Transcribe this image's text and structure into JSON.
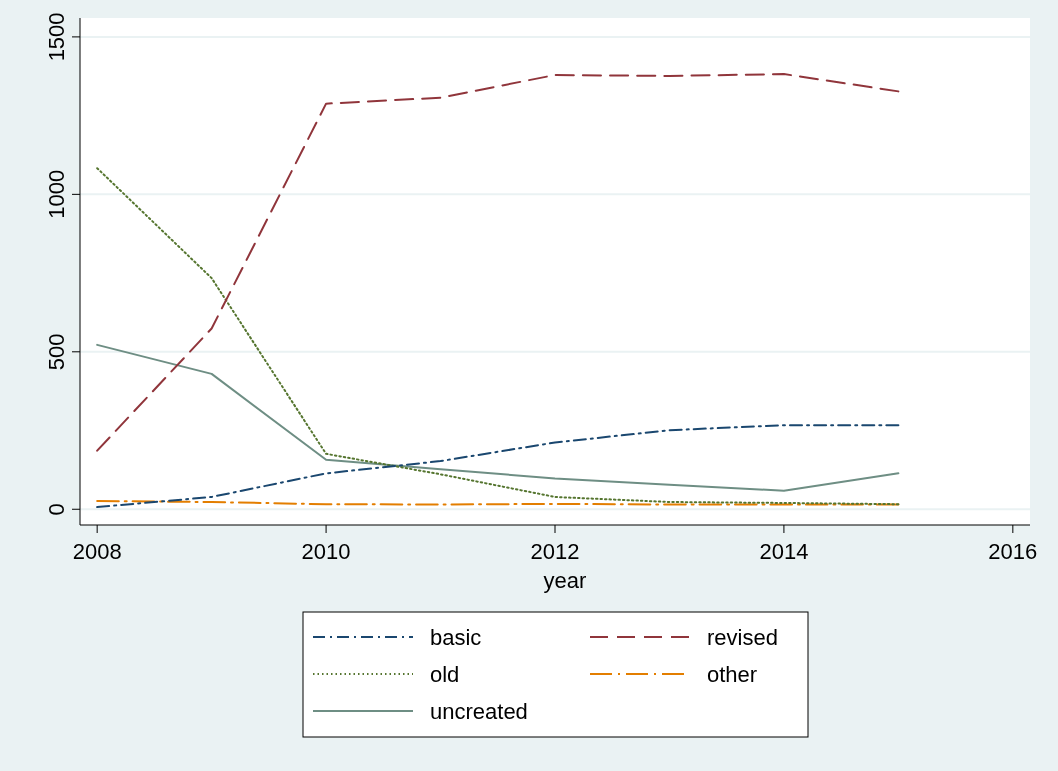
{
  "chart_data": {
    "type": "line",
    "xlabel": "year",
    "x": [
      2008,
      2009,
      2010,
      2011,
      2012,
      2013,
      2014,
      2015
    ],
    "xlim": [
      2007.85,
      2016.15
    ],
    "xticks": [
      2008,
      2010,
      2012,
      2014,
      2016
    ],
    "ylim": [
      -50,
      1560
    ],
    "yticks": [
      0,
      500,
      1000,
      1500
    ],
    "grid": "y",
    "legend": "bottom",
    "series": [
      {
        "name": "basic",
        "color": "#1a476f",
        "line_style": "dashdot",
        "values": [
          7,
          39,
          114,
          153,
          212,
          251,
          267,
          267
        ]
      },
      {
        "name": "revised",
        "color": "#90353b",
        "line_style": "dashed",
        "values": [
          186,
          574,
          1288,
          1307,
          1379,
          1376,
          1382,
          1327
        ]
      },
      {
        "name": "old",
        "color": "#55752f",
        "line_style": "dotted",
        "values": [
          1083,
          734,
          176,
          111,
          39,
          23,
          20,
          16
        ]
      },
      {
        "name": "other",
        "color": "#e37e00",
        "line_style": "longdashdot",
        "values": [
          26,
          23,
          16,
          15,
          17,
          15,
          15,
          15
        ]
      },
      {
        "name": "uncreated",
        "color": "#6e8e84",
        "line_style": "solid",
        "values": [
          522,
          430,
          157,
          127,
          98,
          78,
          59,
          114
        ]
      }
    ]
  }
}
